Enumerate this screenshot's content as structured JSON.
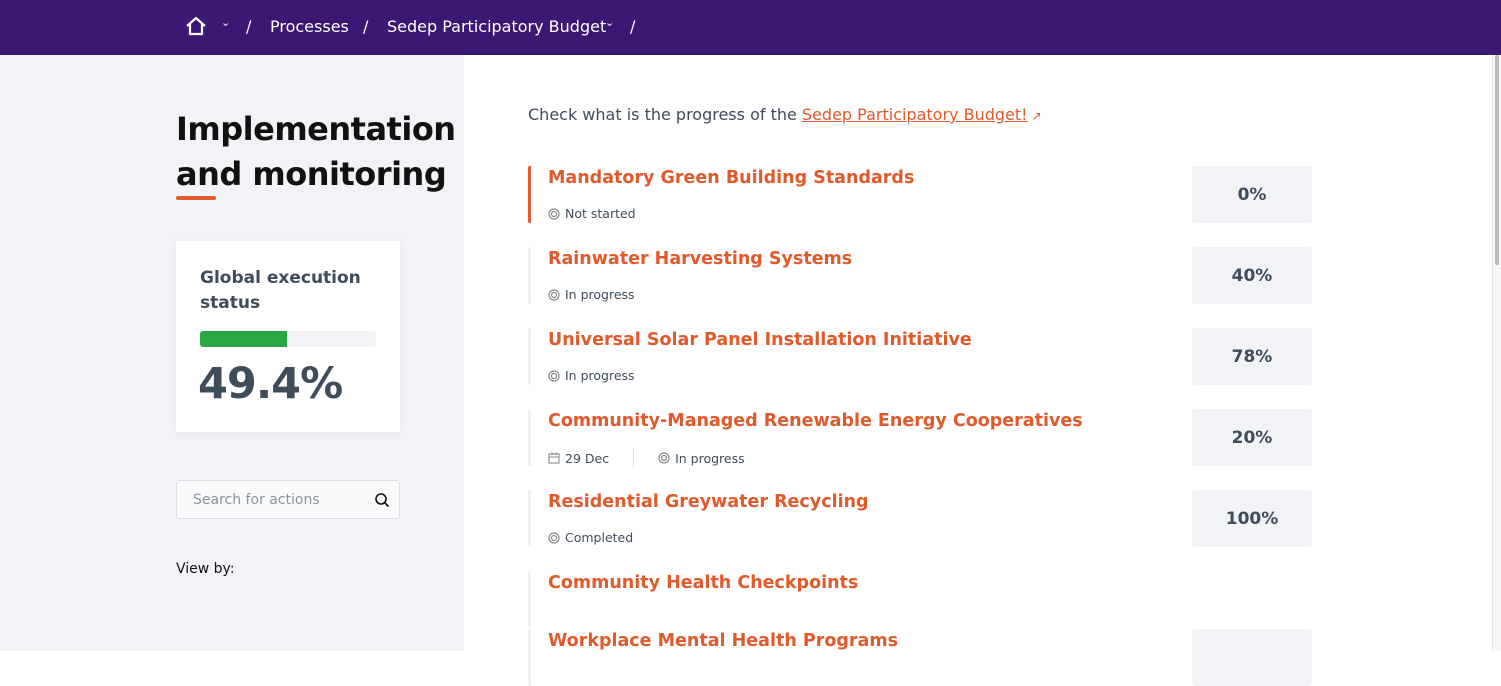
{
  "breadcrumb": {
    "home_icon": "home-icon",
    "items": [
      "Processes",
      "Sedep Participatory Budget"
    ],
    "separator": "/"
  },
  "sidebar": {
    "title": "Implementation and monitoring",
    "status_card": {
      "title": "Global execution status",
      "value": "49.4%",
      "progress_percent": 49.4,
      "bar_color": "#28a745"
    },
    "search": {
      "placeholder": "Search for actions",
      "value": ""
    },
    "view_by_label": "View by:"
  },
  "main": {
    "intro_text": "Check what is the progress of the ",
    "intro_link": "Sedep Participatory Budget!",
    "accent_color": "#e05a2c",
    "items": [
      {
        "title": "Mandatory Green Building Standards",
        "status": "Not started",
        "progress": "0%"
      },
      {
        "title": "Rainwater Harvesting Systems",
        "status": "In progress",
        "progress": "40%"
      },
      {
        "title": "Universal Solar Panel Installation Initiative",
        "status": "In progress",
        "progress": "78%"
      },
      {
        "title": "Community-Managed Renewable Energy Cooperatives",
        "date": "29 Dec",
        "status": "In progress",
        "progress": "20%"
      },
      {
        "title": "Residential Greywater Recycling",
        "status": "Completed",
        "progress": "100%"
      },
      {
        "title": "Community Health Checkpoints"
      },
      {
        "title": "Workplace Mental Health Programs"
      }
    ]
  }
}
